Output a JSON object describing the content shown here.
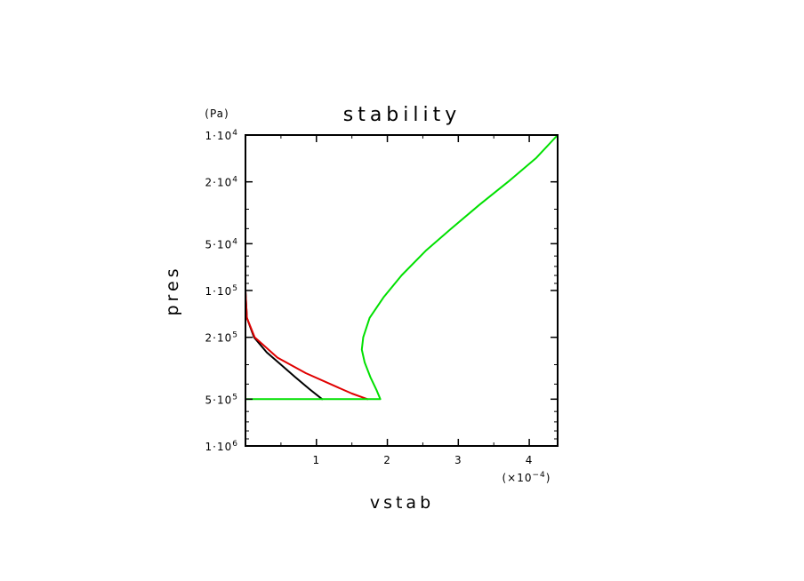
{
  "chart_data": {
    "type": "line",
    "title": "stability",
    "xlabel": "vstab",
    "ylabel": "pres",
    "y_unit": "(Pa)",
    "x_multiplier": "(×10",
    "x_multiplier_exp": "−4",
    "x_multiplier_close": ")",
    "y_scale": "log",
    "y_reversed": true,
    "xlim": [
      0,
      4.4
    ],
    "ylim": [
      1000000,
      10000
    ],
    "x_ticks": [
      {
        "value": 1,
        "label": "1"
      },
      {
        "value": 2,
        "label": "2"
      },
      {
        "value": 3,
        "label": "3"
      },
      {
        "value": 4,
        "label": "4"
      }
    ],
    "y_ticks": [
      {
        "value": 10000,
        "mant": "1·10",
        "exp": "4"
      },
      {
        "value": 20000,
        "mant": "2·10",
        "exp": "4"
      },
      {
        "value": 50000,
        "mant": "5·10",
        "exp": "4"
      },
      {
        "value": 100000,
        "mant": "1·10",
        "exp": "5"
      },
      {
        "value": 200000,
        "mant": "2·10",
        "exp": "5"
      },
      {
        "value": 500000,
        "mant": "5·10",
        "exp": "5"
      },
      {
        "value": 1000000,
        "mant": "1·10",
        "exp": "6"
      }
    ],
    "grid": false,
    "series": [
      {
        "color": "#000000",
        "points": [
          [
            0.0,
            10000
          ],
          [
            0.0,
            60000
          ],
          [
            0.0,
            100000
          ],
          [
            0.02,
            150000
          ],
          [
            0.12,
            200000
          ],
          [
            0.3,
            250000
          ],
          [
            0.5,
            300000
          ],
          [
            0.7,
            360000
          ],
          [
            0.9,
            430000
          ],
          [
            1.08,
            500000
          ]
        ]
      },
      {
        "color": "#e00000",
        "points": [
          [
            0.0,
            10000
          ],
          [
            0.0,
            60000
          ],
          [
            0.0,
            100000
          ],
          [
            0.02,
            150000
          ],
          [
            0.13,
            200000
          ],
          [
            0.45,
            270000
          ],
          [
            0.85,
            340000
          ],
          [
            1.25,
            410000
          ],
          [
            1.5,
            460000
          ],
          [
            1.72,
            500000
          ]
        ]
      },
      {
        "color": "#00e000",
        "points": [
          [
            4.4,
            10000
          ],
          [
            4.1,
            14000
          ],
          [
            3.7,
            20000
          ],
          [
            3.3,
            28000
          ],
          [
            2.9,
            40000
          ],
          [
            2.55,
            55000
          ],
          [
            2.2,
            80000
          ],
          [
            1.95,
            110000
          ],
          [
            1.75,
            150000
          ],
          [
            1.66,
            200000
          ],
          [
            1.64,
            240000
          ],
          [
            1.68,
            290000
          ],
          [
            1.76,
            360000
          ],
          [
            1.85,
            440000
          ],
          [
            1.9,
            500000
          ],
          [
            1.5,
            500000
          ],
          [
            1.0,
            500000
          ],
          [
            0.5,
            500000
          ],
          [
            0.0,
            500000
          ],
          [
            0.0,
            700000
          ],
          [
            0.0,
            1000000
          ]
        ]
      }
    ]
  }
}
